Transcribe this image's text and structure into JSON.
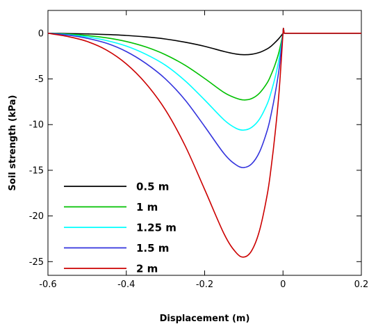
{
  "chart_data": {
    "type": "line",
    "title": "",
    "xlabel": "Displacement (m)",
    "ylabel": "Soil strength (kPa)",
    "xlim": [
      -0.6,
      0.2
    ],
    "ylim": [
      -26.5,
      2.5
    ],
    "xticks": [
      -0.6,
      -0.4,
      -0.2,
      0,
      0.2
    ],
    "xtick_labels": [
      "-0.6",
      "-0.4",
      "-0.2",
      "0",
      "0.2"
    ],
    "yticks": [
      0,
      -5,
      -10,
      -15,
      -20,
      -25
    ],
    "ytick_labels": [
      "0",
      "-5",
      "-10",
      "-15",
      "-20",
      "-25"
    ],
    "grid": false,
    "legend_position": "lower-left",
    "x": [
      -0.6,
      -0.55,
      -0.5,
      -0.45,
      -0.4,
      -0.35,
      -0.3,
      -0.25,
      -0.2,
      -0.15,
      -0.12,
      -0.1,
      -0.08,
      -0.06,
      -0.04,
      -0.03,
      -0.02,
      -0.01,
      0,
      0.001,
      0.003,
      0.2
    ],
    "series": [
      {
        "name": "0.5 m",
        "color": "#000000",
        "values": [
          0,
          -0.03,
          -0.07,
          -0.14,
          -0.24,
          -0.4,
          -0.63,
          -0.98,
          -1.43,
          -2.0,
          -2.27,
          -2.35,
          -2.3,
          -2.1,
          -1.7,
          -1.4,
          -1.0,
          -0.55,
          0,
          0.55,
          0,
          0
        ]
      },
      {
        "name": "1 m",
        "color": "#00c000",
        "values": [
          0,
          -0.1,
          -0.25,
          -0.5,
          -0.9,
          -1.5,
          -2.35,
          -3.5,
          -4.95,
          -6.5,
          -7.1,
          -7.3,
          -7.15,
          -6.55,
          -5.4,
          -4.5,
          -3.4,
          -2.0,
          0,
          0.55,
          0,
          0
        ]
      },
      {
        "name": "1.25 m",
        "color": "#00ffff",
        "values": [
          0,
          -0.15,
          -0.4,
          -0.8,
          -1.4,
          -2.3,
          -3.5,
          -5.2,
          -7.3,
          -9.5,
          -10.4,
          -10.6,
          -10.3,
          -9.4,
          -7.7,
          -6.4,
          -4.8,
          -2.8,
          0,
          0.55,
          0,
          0
        ]
      },
      {
        "name": "1.5 m",
        "color": "#3333dd",
        "values": [
          0,
          -0.2,
          -0.55,
          -1.1,
          -2.0,
          -3.3,
          -5.0,
          -7.3,
          -10.2,
          -13.2,
          -14.4,
          -14.7,
          -14.3,
          -13.0,
          -10.6,
          -8.8,
          -6.6,
          -3.9,
          0,
          0.55,
          0,
          0
        ]
      },
      {
        "name": "2 m",
        "color": "#cc0000",
        "values": [
          0,
          -0.35,
          -0.9,
          -1.85,
          -3.35,
          -5.5,
          -8.4,
          -12.3,
          -17.1,
          -22.0,
          -24.0,
          -24.5,
          -23.8,
          -21.6,
          -17.6,
          -14.6,
          -10.9,
          -6.4,
          0,
          0.55,
          0,
          0
        ]
      }
    ]
  }
}
